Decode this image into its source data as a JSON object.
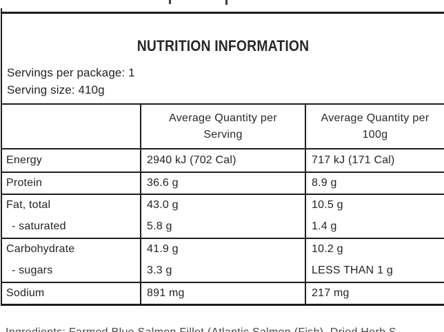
{
  "document": {
    "type": "nutrition-information-panel",
    "title": "NUTRITION INFORMATION",
    "servings_per_package_label": "Servings per package: 1",
    "serving_size_label": "Serving size: 410g",
    "table": {
      "columns": [
        {
          "line1": "",
          "line2": ""
        },
        {
          "line1": "Average Quantity per",
          "line2": "Serving"
        },
        {
          "line1": "Average Quantity per",
          "line2": "100g"
        }
      ],
      "rows": [
        {
          "nutrient": "Energy",
          "per_serving": "2940 kJ (702 Cal)",
          "per_100g": "717 kJ (171 Cal)",
          "indent": false
        },
        {
          "nutrient": "Protein",
          "per_serving": "36.6 g",
          "per_100g": "8.9 g",
          "indent": false
        },
        {
          "nutrient": "Fat, total",
          "per_serving": "43.0 g",
          "per_100g": "10.5 g",
          "indent": false
        },
        {
          "nutrient": "- saturated",
          "per_serving": "5.8 g",
          "per_100g": "1.4 g",
          "indent": true
        },
        {
          "nutrient": "Carbohydrate",
          "per_serving": "41.9 g",
          "per_100g": "10.2 g",
          "indent": false
        },
        {
          "nutrient": "- sugars",
          "per_serving": "3.3 g",
          "per_100g": "LESS THAN 1 g",
          "indent": true
        },
        {
          "nutrient": "Sodium",
          "per_serving": "891 mg",
          "per_100g": "217 mg",
          "indent": false
        }
      ]
    },
    "clipped_bottom_text": "Ingredients: Farmed Blue Salmon Fillet (Atlantic Salmon (Fish), Dried Herb S",
    "colors": {
      "border": "#1c1c1c",
      "text": "#232326",
      "background": "#ffffff"
    }
  }
}
